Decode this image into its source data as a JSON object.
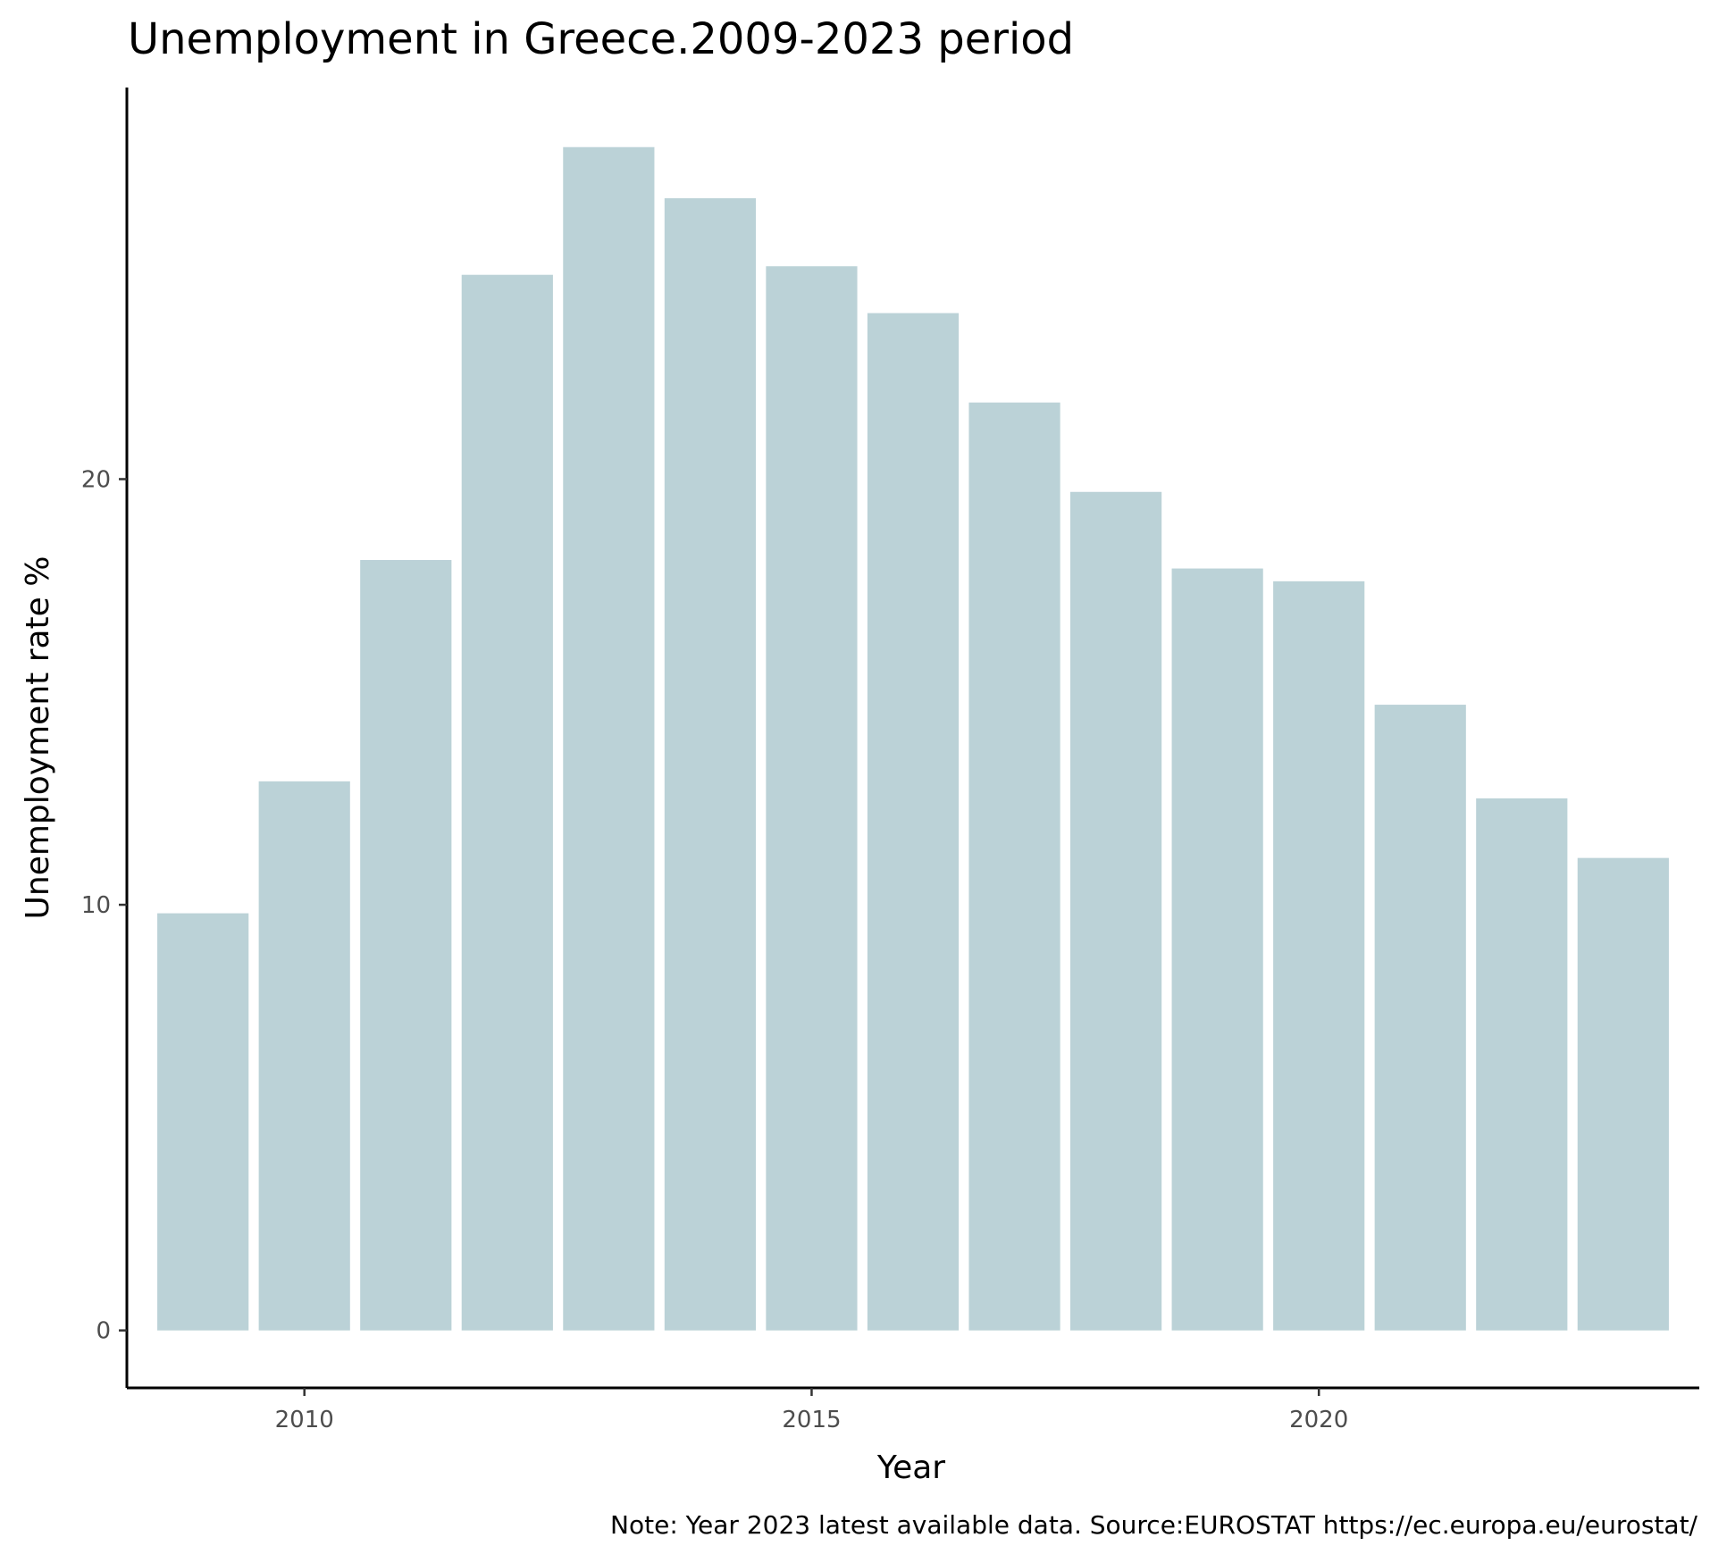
{
  "chart_data": {
    "type": "bar",
    "title": "Unemployment in Greece.2009-2023 period",
    "xlabel": "Year",
    "ylabel": "Unemployment rate %",
    "caption": "Note: Year 2023  latest available data. Source:EUROSTAT https://ec.europa.eu/eurostat/",
    "x": [
      2009,
      2010,
      2011,
      2012,
      2013,
      2014,
      2015,
      2016,
      2017,
      2018,
      2019,
      2020,
      2021,
      2022,
      2023
    ],
    "values": [
      9.8,
      12.9,
      18.1,
      24.8,
      27.8,
      26.6,
      25.0,
      23.9,
      21.8,
      19.7,
      17.9,
      17.6,
      14.7,
      12.5,
      11.1
    ],
    "xticks": [
      "2010",
      "2015",
      "2020"
    ],
    "yticks": [
      "0",
      "10",
      "20"
    ],
    "ylim": [
      -1.35,
      29.2
    ],
    "xlim": [
      2008.25,
      2023.75
    ],
    "grid": false,
    "legend": "none",
    "bar_color": "#bbd2d7",
    "axis_color": "#000000"
  }
}
